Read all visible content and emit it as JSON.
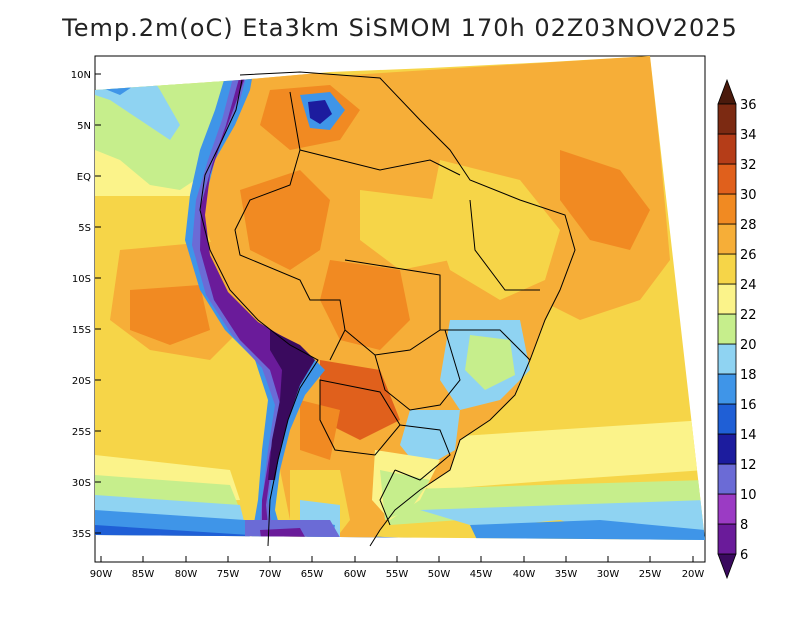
{
  "title": "Temp.2m(oC) Eta3km SiSMOM 170h 02Z03NOV2025",
  "lat_ticks": [
    "10N",
    "5N",
    "EQ",
    "5S",
    "10S",
    "15S",
    "20S",
    "25S",
    "30S",
    "35S"
  ],
  "lon_ticks": [
    "90W",
    "85W",
    "80W",
    "75W",
    "70W",
    "65W",
    "60W",
    "55W",
    "50W",
    "45W",
    "40W",
    "35W",
    "30W",
    "25W",
    "20W"
  ],
  "colorbar": {
    "labels": [
      "6",
      "8",
      "10",
      "12",
      "14",
      "16",
      "18",
      "20",
      "22",
      "24",
      "26",
      "28",
      "30",
      "32",
      "34",
      "36"
    ],
    "colors": [
      "#3a0a5e",
      "#6a1b9a",
      "#9b3bc4",
      "#6b6bd6",
      "#1c1c9e",
      "#1f5fd6",
      "#3f95e8",
      "#8fd3f2",
      "#c6ee8c",
      "#fbf38a",
      "#f6d548",
      "#f6ae38",
      "#f18a22",
      "#e0601c",
      "#b53d18",
      "#7c2a12",
      "#4a1a0c"
    ]
  }
}
